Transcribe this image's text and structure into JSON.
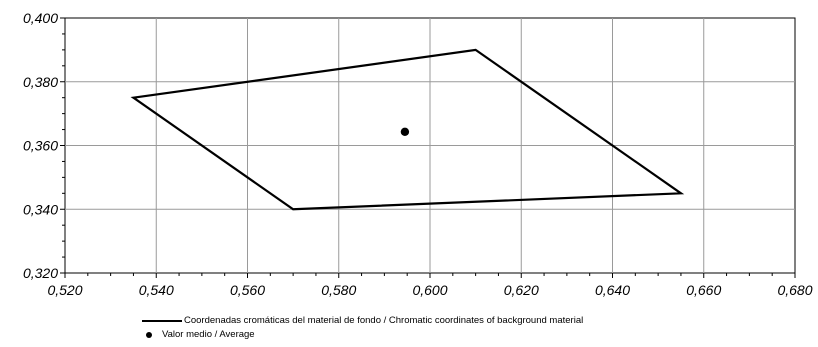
{
  "chart_data": {
    "type": "scatter",
    "title": "",
    "xlabel": "",
    "ylabel": "",
    "xlim": [
      0.52,
      0.68
    ],
    "ylim": [
      0.32,
      0.4
    ],
    "x_ticks": [
      "0,520",
      "0,540",
      "0,560",
      "0,580",
      "0,600",
      "0,620",
      "0,640",
      "0,660",
      "0,680"
    ],
    "y_ticks": [
      "0,320",
      "0,340",
      "0,360",
      "0,380",
      "0,400"
    ],
    "grid": true,
    "legend_position": "bottom",
    "series": [
      {
        "name": "Coordenadas cromáticas del material de fondo / Chromatic coordinates of background material",
        "kind": "polygon",
        "points": [
          {
            "x": 0.535,
            "y": 0.375
          },
          {
            "x": 0.61,
            "y": 0.39
          },
          {
            "x": 0.655,
            "y": 0.345
          },
          {
            "x": 0.57,
            "y": 0.34
          }
        ],
        "color": "#000000"
      },
      {
        "name": "Valor medio / Average",
        "kind": "point",
        "points": [
          {
            "x": 0.5945,
            "y": 0.3643
          }
        ],
        "color": "#000000"
      }
    ]
  }
}
